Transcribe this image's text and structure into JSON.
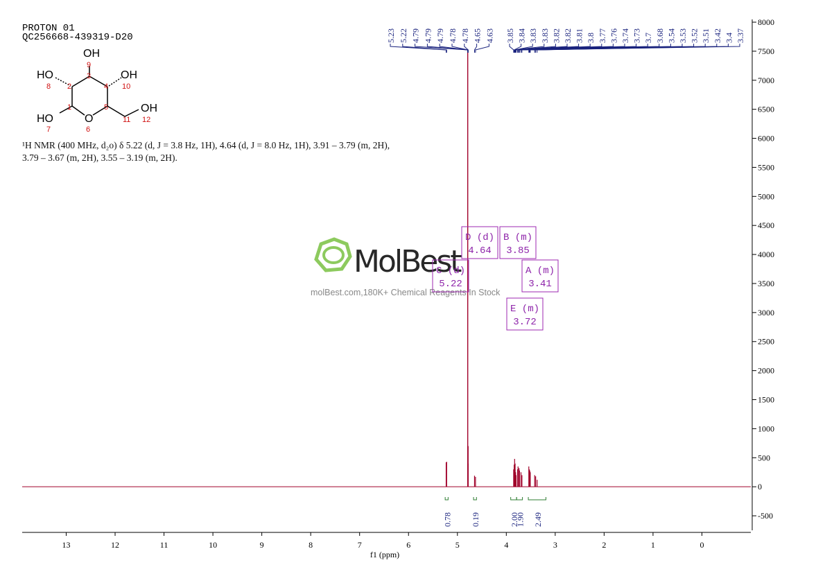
{
  "header": {
    "title": "PROTON 01",
    "sample": "QC256668-439319-D20"
  },
  "structure": {
    "labels": [
      "OH",
      "9",
      "HO",
      "8",
      "2",
      "3",
      "4",
      "OH",
      "10",
      "HO",
      "7",
      "1",
      "O",
      "6",
      "5",
      "11",
      "OH",
      "12"
    ]
  },
  "description": "¹H NMR (400 MHz, d₂o) δ 5.22 (d, J = 3.8 Hz, 1H), 4.64 (d, J = 8.0 Hz, 1H), 3.91 – 3.79 (m, 2H), 3.79 – 3.67 (m, 2H), 3.55 – 3.19 (m, 2H).",
  "watermark": {
    "brand": "MolBest",
    "tagline": "molBest.com,180K+ Chemical Reagents In Stock"
  },
  "chart_data": {
    "type": "nmr",
    "xlabel": "f1 (ppm)",
    "xlim": [
      13.9,
      -1
    ],
    "xticks": [
      13,
      12,
      11,
      10,
      9,
      8,
      7,
      6,
      5,
      4,
      3,
      2,
      1,
      0
    ],
    "ylim": [
      -750,
      8000
    ],
    "yticks": [
      -500,
      0,
      500,
      1000,
      1500,
      2000,
      2500,
      3000,
      3500,
      4000,
      4500,
      5000,
      5500,
      6000,
      6500,
      7000,
      7500,
      8000
    ],
    "color": "#a0002a",
    "label_color": "#1a237e",
    "peaks": {
      "x": [
        5.23,
        5.22,
        4.79,
        4.79,
        4.79,
        4.78,
        4.78,
        4.65,
        4.63,
        3.85,
        3.84,
        3.83,
        3.83,
        3.82,
        3.82,
        3.81,
        3.8,
        3.77,
        3.76,
        3.74,
        3.73,
        3.7,
        3.68,
        3.54,
        3.53,
        3.52,
        3.51,
        3.42,
        3.4,
        3.37
      ],
      "values": [
        420,
        430,
        8000,
        8000,
        8000,
        700,
        400,
        190,
        170,
        300,
        380,
        480,
        350,
        400,
        300,
        250,
        200,
        300,
        350,
        320,
        280,
        250,
        200,
        350,
        300,
        280,
        250,
        200,
        180,
        120
      ]
    },
    "multiplets": [
      {
        "name": "D (d)",
        "shift": 4.64
      },
      {
        "name": "B (m)",
        "shift": 3.85
      },
      {
        "name": "C (d)",
        "shift": 5.22
      },
      {
        "name": "A (m)",
        "shift": 3.41
      },
      {
        "name": "E (m)",
        "shift": 3.72
      }
    ],
    "integrals": {
      "values": [
        0.78,
        0.19,
        2,
        1.9,
        2.49
      ],
      "value_labels": [
        "0.78",
        "0.19",
        "2.00",
        "1.90",
        "2.49"
      ],
      "ranges": [
        [
          5.25,
          5.19
        ],
        [
          4.67,
          4.61
        ],
        [
          3.91,
          3.79
        ],
        [
          3.79,
          3.67
        ],
        [
          3.55,
          3.19
        ]
      ]
    }
  }
}
